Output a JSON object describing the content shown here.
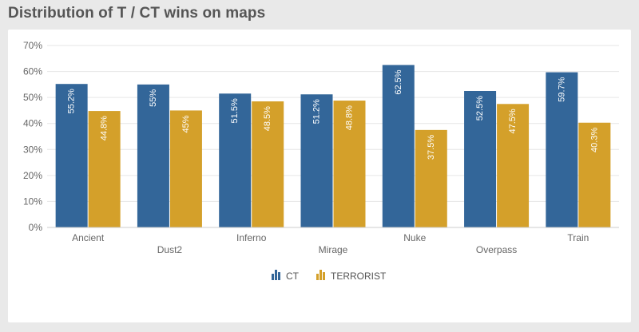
{
  "page": {
    "title": "Distribution of T / CT wins on maps"
  },
  "chart_data": {
    "type": "bar",
    "categories": [
      "Ancient",
      "Dust2",
      "Inferno",
      "Mirage",
      "Nuke",
      "Overpass",
      "Train"
    ],
    "series": [
      {
        "name": "CT",
        "color": "#336699",
        "values": [
          55.2,
          55,
          51.5,
          51.2,
          62.5,
          52.5,
          59.7
        ],
        "labels": [
          "55.2%",
          "55%",
          "51.5%",
          "51.2%",
          "62.5%",
          "52.5%",
          "59.7%"
        ]
      },
      {
        "name": "TERRORIST",
        "color": "#d4a02a",
        "values": [
          44.8,
          45,
          48.5,
          48.8,
          37.5,
          47.5,
          40.3
        ],
        "labels": [
          "44.8%",
          "45%",
          "48.5%",
          "48.8%",
          "37.5%",
          "47.5%",
          "40.3%"
        ]
      }
    ],
    "ylim": [
      0,
      70
    ],
    "yticks": [
      0,
      10,
      20,
      30,
      40,
      50,
      60,
      70
    ],
    "ytick_labels": [
      "0%",
      "10%",
      "20%",
      "30%",
      "40%",
      "50%",
      "60%",
      "70%"
    ],
    "grid": true,
    "legend_position": "bottom-center",
    "data_labels": "inside-top-rotated"
  }
}
